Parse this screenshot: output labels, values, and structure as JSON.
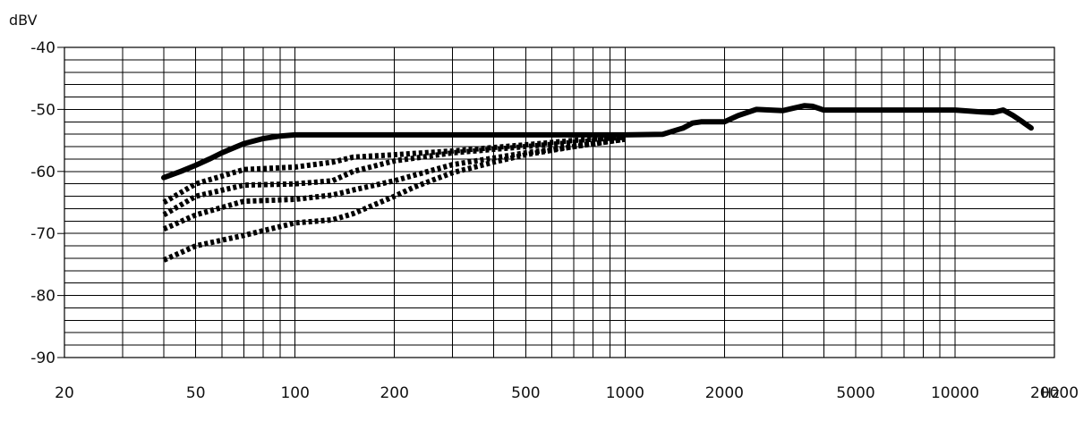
{
  "chart_data": {
    "type": "line",
    "ylabel": "dBV",
    "xlabel": "Hz",
    "x_scale": "log",
    "xlim": [
      20,
      20000
    ],
    "ylim": [
      -90,
      -40
    ],
    "x_ticks": [
      20,
      50,
      100,
      200,
      500,
      1000,
      2000,
      5000,
      10000,
      20000
    ],
    "x_tick_labels": [
      "20",
      "50",
      "100",
      "200",
      "500",
      "1000",
      "2000",
      "5000",
      "10000",
      "20000"
    ],
    "y_ticks": [
      -40,
      -50,
      -60,
      -70,
      -80,
      -90
    ],
    "y_tick_labels": [
      "-40",
      "-50",
      "-60",
      "-70",
      "-80",
      "-90"
    ],
    "grid": true,
    "series": [
      {
        "style": "solid",
        "color": "#000000",
        "x": [
          40,
          45,
          50,
          55,
          60,
          70,
          80,
          90,
          100,
          150,
          200,
          300,
          500,
          700,
          1000,
          1300,
          1500,
          1600,
          1700,
          2000,
          2200,
          2500,
          3000,
          3500,
          3700,
          4000,
          5000,
          7000,
          10000,
          12000,
          13000,
          14000,
          15000,
          16000,
          17000
        ],
        "y": [
          -61,
          -60,
          -59,
          -58,
          -57,
          -55.5,
          -54.7,
          -54.3,
          -54.1,
          -54.1,
          -54.1,
          -54.1,
          -54.1,
          -54.1,
          -54.1,
          -54,
          -53,
          -52.2,
          -52,
          -52,
          -51,
          -50,
          -50.2,
          -49.4,
          -49.5,
          -50.1,
          -50.1,
          -50.1,
          -50.1,
          -50.4,
          -50.5,
          -50.1,
          -51,
          -52,
          -53
        ]
      },
      {
        "style": "dotted",
        "color": "#000000",
        "x": [
          40,
          50,
          70,
          100,
          130,
          150,
          200,
          300,
          500,
          700,
          1000
        ],
        "y": [
          -65,
          -62,
          -59.7,
          -59.3,
          -58.5,
          -57.7,
          -57.3,
          -56.7,
          -55.7,
          -55,
          -54.5
        ]
      },
      {
        "style": "dotted",
        "color": "#000000",
        "x": [
          40,
          50,
          70,
          100,
          130,
          150,
          200,
          300,
          500,
          700,
          1000
        ],
        "y": [
          -67,
          -64,
          -62.2,
          -62,
          -61.5,
          -60,
          -58.3,
          -57,
          -56,
          -55.3,
          -54.6
        ]
      },
      {
        "style": "dotted",
        "color": "#000000",
        "x": [
          40,
          50,
          70,
          100,
          130,
          150,
          200,
          300,
          500,
          700,
          1000
        ],
        "y": [
          -69.3,
          -67,
          -64.8,
          -64.5,
          -63.8,
          -63,
          -61.5,
          -58.9,
          -57,
          -56,
          -54.8
        ]
      },
      {
        "style": "dotted",
        "color": "#000000",
        "x": [
          40,
          50,
          70,
          100,
          130,
          150,
          200,
          230,
          300,
          400,
          500,
          700,
          1000
        ],
        "y": [
          -74.3,
          -72,
          -70.3,
          -68.3,
          -67.8,
          -66.8,
          -64,
          -62.5,
          -60.2,
          -58.5,
          -57.3,
          -56,
          -54.8
        ]
      }
    ]
  }
}
